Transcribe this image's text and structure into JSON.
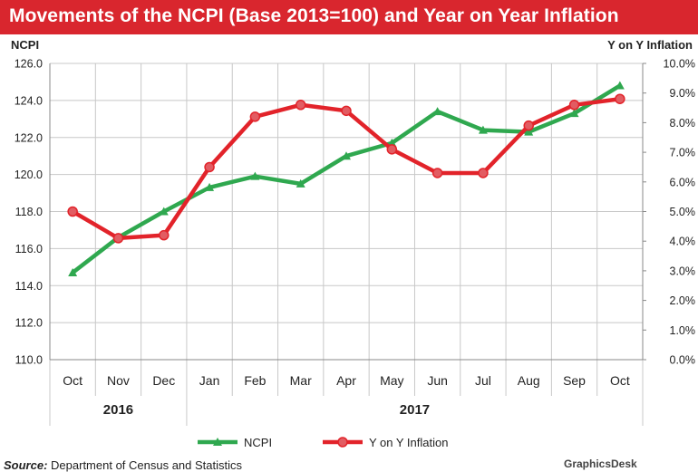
{
  "title": "Movements of the NCPI (Base 2013=100) and Year on Year Inflation",
  "source_label": "Source:",
  "source_text": "Department of Census and Statistics",
  "credit": "GraphicsDesk",
  "chart_data": {
    "type": "line",
    "categories": [
      "Oct",
      "Nov",
      "Dec",
      "Jan",
      "Feb",
      "Mar",
      "Apr",
      "May",
      "Jun",
      "Jul",
      "Aug",
      "Sep",
      "Oct"
    ],
    "year_groups": [
      {
        "label": "2016",
        "from": 0,
        "to": 2
      },
      {
        "label": "2017",
        "from": 3,
        "to": 12
      }
    ],
    "ylabel_left": "NCPI",
    "ylabel_right": "Y on Y Inflation",
    "ylim_left": [
      110.0,
      126.0
    ],
    "ylim_right": [
      0.0,
      10.0
    ],
    "yticks_left": [
      "110.0",
      "112.0",
      "114.0",
      "116.0",
      "118.0",
      "120.0",
      "122.0",
      "124.0",
      "126.0"
    ],
    "yticks_right": [
      "0.0%",
      "1.0%",
      "2.0%",
      "3.0%",
      "4.0%",
      "5.0%",
      "6.0%",
      "7.0%",
      "8.0%",
      "9.0%",
      "10.0%"
    ],
    "grid": true,
    "legend_position": "bottom",
    "series": [
      {
        "name": "NCPI",
        "axis": "left",
        "color": "#2fa84f",
        "marker": "triangle",
        "values": [
          114.7,
          116.6,
          118.0,
          119.3,
          119.9,
          119.5,
          121.0,
          121.7,
          123.4,
          122.4,
          122.3,
          123.3,
          124.8
        ]
      },
      {
        "name": "Y on Y Inflation",
        "axis": "right",
        "color": "#e2232a",
        "marker": "circle",
        "values": [
          5.0,
          4.1,
          4.2,
          6.5,
          8.2,
          8.6,
          8.4,
          7.1,
          6.3,
          6.3,
          7.9,
          8.6,
          8.8
        ]
      }
    ]
  }
}
